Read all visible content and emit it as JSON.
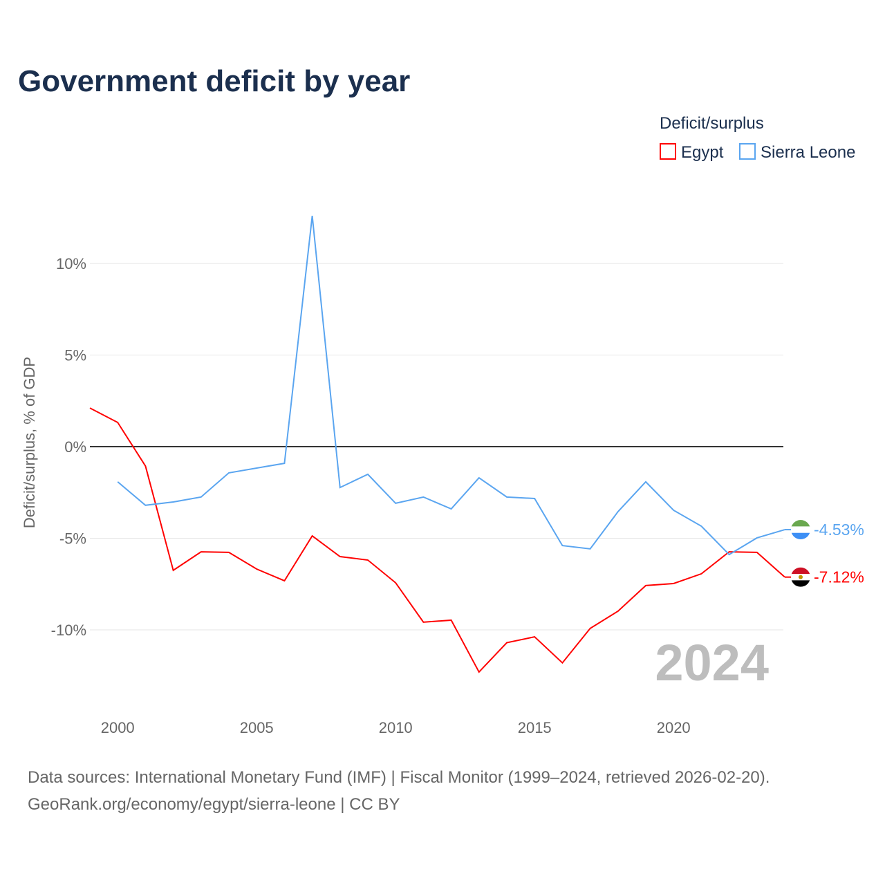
{
  "chart_data": {
    "type": "line",
    "title": "Government deficit by year",
    "ylabel": "Deficit/surplus, % of GDP",
    "xlabel": "",
    "legend_title": "Deficit/surplus",
    "legend_position": "top-right",
    "xlim": [
      1999,
      2024
    ],
    "ylim": [
      -13,
      12.7
    ],
    "x_ticks": [
      2000,
      2005,
      2010,
      2015,
      2020
    ],
    "x_tick_labels": [
      "2000",
      "2005",
      "2010",
      "2015",
      "2020"
    ],
    "y_ticks": [
      10,
      5,
      0,
      -5,
      -10
    ],
    "y_tick_labels": [
      "10%",
      "5%",
      "0%",
      "-5%",
      "-10%"
    ],
    "year_label": "2024",
    "series": [
      {
        "name": "Egypt",
        "color": "#ff0000",
        "end_label": "-7.12%",
        "x": [
          1999,
          2000,
          2001,
          2002,
          2003,
          2004,
          2005,
          2006,
          2007,
          2008,
          2009,
          2010,
          2011,
          2012,
          2013,
          2014,
          2015,
          2016,
          2017,
          2018,
          2019,
          2020,
          2021,
          2022,
          2023,
          2024
        ],
        "values": [
          2.11,
          1.32,
          -1.06,
          -6.75,
          -5.74,
          -5.77,
          -6.68,
          -7.32,
          -4.87,
          -6.0,
          -6.19,
          -7.43,
          -9.58,
          -9.47,
          -12.3,
          -10.7,
          -10.38,
          -11.8,
          -9.92,
          -8.98,
          -7.58,
          -7.47,
          -6.94,
          -5.74,
          -5.77,
          -7.12
        ]
      },
      {
        "name": "Sierra Leone",
        "color": "#5aa5f0",
        "end_label": "-4.53%",
        "x": [
          2000,
          2001,
          2002,
          2003,
          2004,
          2005,
          2006,
          2007,
          2008,
          2009,
          2010,
          2011,
          2012,
          2013,
          2014,
          2015,
          2016,
          2017,
          2018,
          2019,
          2020,
          2021,
          2022,
          2023,
          2024
        ],
        "values": [
          -1.92,
          -3.2,
          -3.02,
          -2.75,
          -1.43,
          -1.17,
          -0.91,
          12.6,
          -2.23,
          -1.51,
          -3.09,
          -2.75,
          -3.4,
          -1.7,
          -2.75,
          -2.83,
          -5.4,
          -5.58,
          -3.55,
          -1.92,
          -3.47,
          -4.34,
          -5.89,
          -4.98,
          -4.53
        ]
      }
    ]
  },
  "footer": {
    "sources": "Data sources: International Monetary Fund (IMF) | Fiscal Monitor (1999–2024, retrieved 2026-02-20).",
    "credit": "GeoRank.org/economy/egypt/sierra-leone | CC BY"
  }
}
